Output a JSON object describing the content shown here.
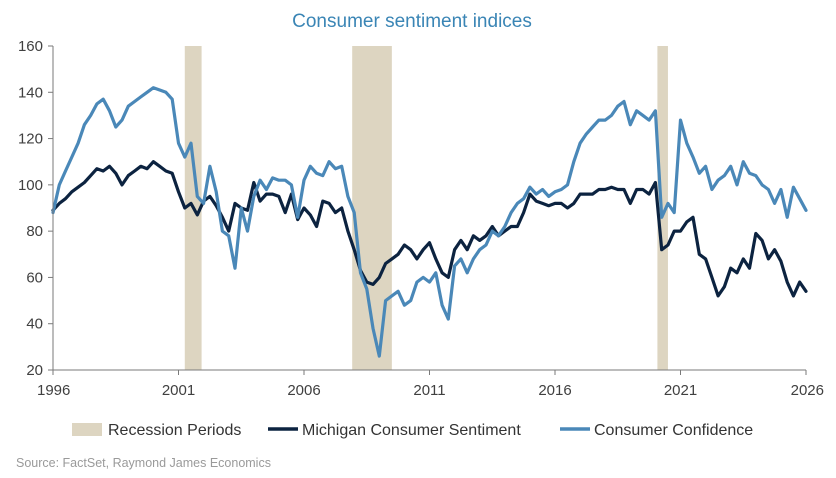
{
  "chart_data": {
    "type": "line",
    "title": "Consumer sentiment indices",
    "source": "Source: FactSet, Raymond James Economics",
    "xlim": [
      1996,
      2026
    ],
    "ylim": [
      20,
      160
    ],
    "x_ticks": [
      "1996",
      "2001",
      "2006",
      "2011",
      "2016",
      "2021",
      "2026"
    ],
    "y_ticks": [
      "20",
      "40",
      "60",
      "80",
      "100",
      "120",
      "140",
      "160"
    ],
    "grid": false,
    "legend_position": "bottom",
    "legend": [
      "Recession Periods",
      "Michigan Consumer Sentiment",
      "Consumer Confidence"
    ],
    "colors": {
      "recession": "#ddd5c1",
      "michigan": "#0c2340",
      "confidence": "#4a88b8",
      "title": "#3a85b5"
    },
    "recessions": [
      {
        "start": 2001.25,
        "end": 2001.92
      },
      {
        "start": 2007.92,
        "end": 2009.5
      },
      {
        "start": 2020.08,
        "end": 2020.5
      }
    ],
    "series": [
      {
        "name": "Michigan Consumer Sentiment",
        "x": [
          1996.0,
          1996.25,
          1996.5,
          1996.75,
          1997.0,
          1997.25,
          1997.5,
          1997.75,
          1998.0,
          1998.25,
          1998.5,
          1998.75,
          1999.0,
          1999.25,
          1999.5,
          1999.75,
          2000.0,
          2000.25,
          2000.5,
          2000.75,
          2001.0,
          2001.25,
          2001.5,
          2001.75,
          2002.0,
          2002.25,
          2002.5,
          2002.75,
          2003.0,
          2003.25,
          2003.5,
          2003.75,
          2004.0,
          2004.25,
          2004.5,
          2004.75,
          2005.0,
          2005.25,
          2005.5,
          2005.75,
          2006.0,
          2006.25,
          2006.5,
          2006.75,
          2007.0,
          2007.25,
          2007.5,
          2007.75,
          2008.0,
          2008.25,
          2008.5,
          2008.75,
          2009.0,
          2009.25,
          2009.5,
          2009.75,
          2010.0,
          2010.25,
          2010.5,
          2010.75,
          2011.0,
          2011.25,
          2011.5,
          2011.75,
          2012.0,
          2012.25,
          2012.5,
          2012.75,
          2013.0,
          2013.25,
          2013.5,
          2013.75,
          2014.0,
          2014.25,
          2014.5,
          2014.75,
          2015.0,
          2015.25,
          2015.5,
          2015.75,
          2016.0,
          2016.25,
          2016.5,
          2016.75,
          2017.0,
          2017.25,
          2017.5,
          2017.75,
          2018.0,
          2018.25,
          2018.5,
          2018.75,
          2019.0,
          2019.25,
          2019.5,
          2019.75,
          2020.0,
          2020.25,
          2020.5,
          2020.75,
          2021.0,
          2021.25,
          2021.5,
          2021.75,
          2022.0,
          2022.25,
          2022.5,
          2022.75,
          2023.0,
          2023.25,
          2023.5,
          2023.75,
          2024.0,
          2024.25,
          2024.5,
          2024.75,
          2025.0,
          2025.25,
          2025.5,
          2025.75,
          2026.0
        ],
        "y": [
          89,
          92,
          94,
          97,
          99,
          101,
          104,
          107,
          106,
          108,
          105,
          100,
          104,
          106,
          108,
          107,
          110,
          108,
          106,
          105,
          97,
          90,
          92,
          87,
          93,
          95,
          91,
          86,
          80,
          92,
          90,
          89,
          101,
          93,
          96,
          96,
          95,
          88,
          96,
          85,
          90,
          87,
          82,
          93,
          92,
          88,
          90,
          80,
          72,
          63,
          58,
          57,
          60,
          66,
          68,
          70,
          74,
          72,
          68,
          72,
          75,
          68,
          62,
          60,
          72,
          76,
          72,
          78,
          76,
          78,
          82,
          78,
          80,
          82,
          82,
          88,
          96,
          93,
          92,
          91,
          92,
          92,
          90,
          92,
          96,
          96,
          96,
          98,
          98,
          99,
          98,
          98,
          92,
          98,
          98,
          96,
          101,
          72,
          74,
          80,
          80,
          84,
          86,
          70,
          68,
          60,
          52,
          56,
          64,
          62,
          68,
          64,
          79,
          76,
          68,
          72,
          67,
          58,
          52,
          58,
          54
        ],
        "color": "#0c2340"
      },
      {
        "name": "Consumer Confidence",
        "x": [
          1996.0,
          1996.25,
          1996.5,
          1996.75,
          1997.0,
          1997.25,
          1997.5,
          1997.75,
          1998.0,
          1998.25,
          1998.5,
          1998.75,
          1999.0,
          1999.25,
          1999.5,
          1999.75,
          2000.0,
          2000.25,
          2000.5,
          2000.75,
          2001.0,
          2001.25,
          2001.5,
          2001.75,
          2002.0,
          2002.25,
          2002.5,
          2002.75,
          2003.0,
          2003.25,
          2003.5,
          2003.75,
          2004.0,
          2004.25,
          2004.5,
          2004.75,
          2005.0,
          2005.25,
          2005.5,
          2005.75,
          2006.0,
          2006.25,
          2006.5,
          2006.75,
          2007.0,
          2007.25,
          2007.5,
          2007.75,
          2008.0,
          2008.25,
          2008.5,
          2008.75,
          2009.0,
          2009.25,
          2009.5,
          2009.75,
          2010.0,
          2010.25,
          2010.5,
          2010.75,
          2011.0,
          2011.25,
          2011.5,
          2011.75,
          2012.0,
          2012.25,
          2012.5,
          2012.75,
          2013.0,
          2013.25,
          2013.5,
          2013.75,
          2014.0,
          2014.25,
          2014.5,
          2014.75,
          2015.0,
          2015.25,
          2015.5,
          2015.75,
          2016.0,
          2016.25,
          2016.5,
          2016.75,
          2017.0,
          2017.25,
          2017.5,
          2017.75,
          2018.0,
          2018.25,
          2018.5,
          2018.75,
          2019.0,
          2019.25,
          2019.5,
          2019.75,
          2020.0,
          2020.25,
          2020.5,
          2020.75,
          2021.0,
          2021.25,
          2021.5,
          2021.75,
          2022.0,
          2022.25,
          2022.5,
          2022.75,
          2023.0,
          2023.25,
          2023.5,
          2023.75,
          2024.0,
          2024.25,
          2024.5,
          2024.75,
          2025.0,
          2025.25,
          2025.5,
          2025.75,
          2026.0
        ],
        "y": [
          88,
          100,
          106,
          112,
          118,
          126,
          130,
          135,
          137,
          132,
          125,
          128,
          134,
          136,
          138,
          140,
          142,
          141,
          140,
          137,
          118,
          112,
          118,
          95,
          92,
          108,
          97,
          80,
          78,
          64,
          90,
          80,
          95,
          102,
          98,
          103,
          102,
          102,
          100,
          86,
          102,
          108,
          105,
          104,
          110,
          107,
          108,
          95,
          88,
          62,
          55,
          38,
          26,
          50,
          52,
          54,
          48,
          50,
          58,
          60,
          58,
          62,
          48,
          42,
          65,
          68,
          62,
          68,
          72,
          74,
          80,
          78,
          82,
          88,
          92,
          94,
          99,
          96,
          98,
          95,
          97,
          98,
          100,
          110,
          118,
          122,
          125,
          128,
          128,
          130,
          134,
          136,
          126,
          132,
          130,
          128,
          132,
          86,
          92,
          88,
          128,
          118,
          112,
          105,
          108,
          98,
          102,
          104,
          108,
          100,
          110,
          105,
          104,
          100,
          98,
          92,
          98,
          86,
          99,
          94,
          89
        ],
        "color": "#4a88b8"
      }
    ]
  }
}
